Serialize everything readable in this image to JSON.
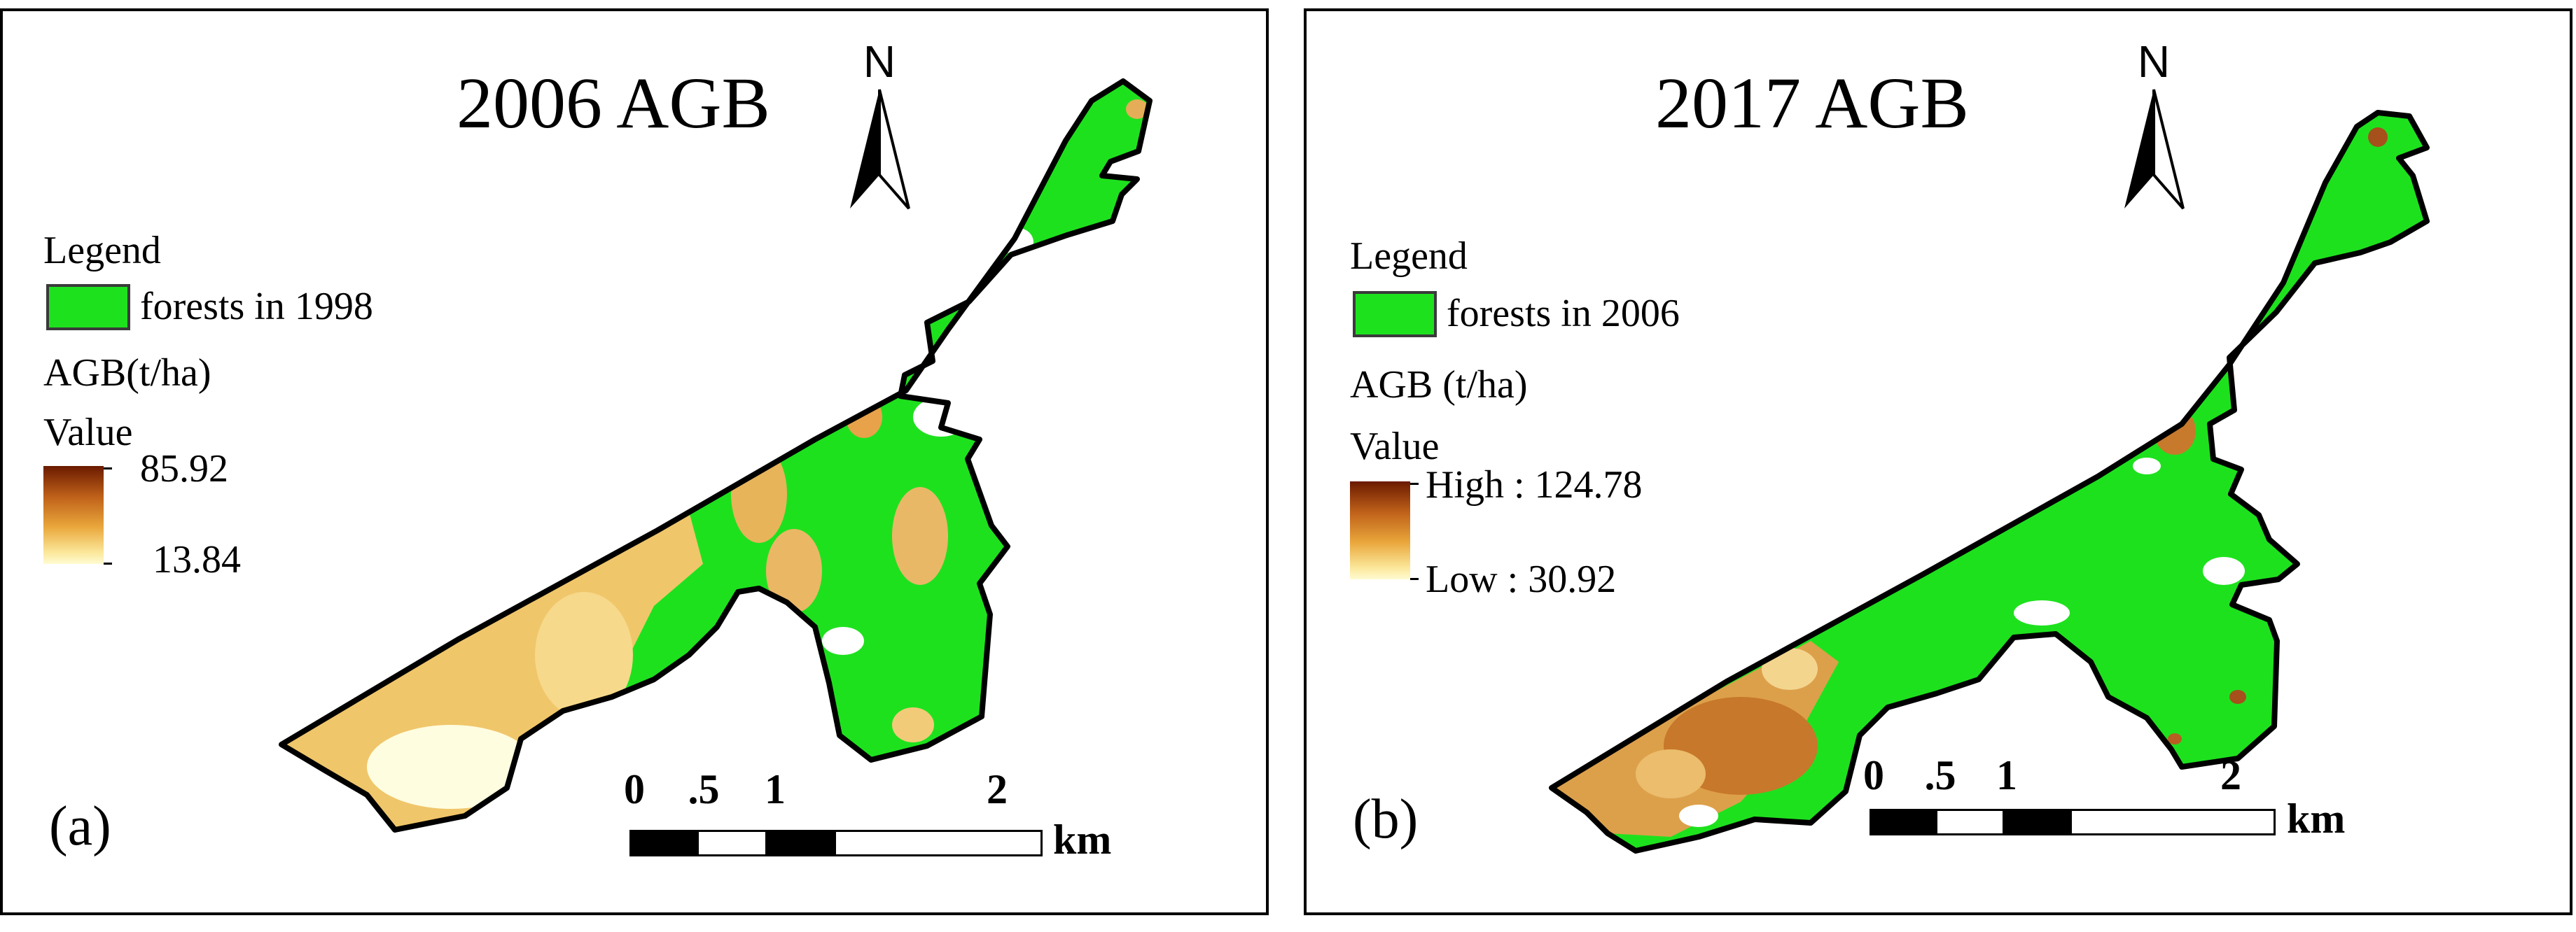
{
  "panel_a": {
    "title": "2006 AGB",
    "north_label": "N",
    "legend_heading": "Legend",
    "forest_label": "forests in 1998",
    "agb_label": "AGB(t/ha)",
    "value_label": "Value",
    "ramp_high": "85.92",
    "ramp_low": "13.84",
    "scale": {
      "n0": "0",
      "n1": ".5",
      "n2": "1",
      "n3": "2",
      "unit": "km"
    },
    "panel_letter": "(a)"
  },
  "panel_b": {
    "title": "2017 AGB",
    "north_label": "N",
    "legend_heading": "Legend",
    "forest_label": "forests in 2006",
    "agb_label": "AGB (t/ha)",
    "value_label": "Value",
    "ramp_high": "High : 124.78",
    "ramp_low": "Low : 30.92",
    "scale": {
      "n0": "0",
      "n1": ".5",
      "n2": "1",
      "n3": "2",
      "unit": "km"
    },
    "panel_letter": "(b)"
  },
  "colors": {
    "forest": "#1ee11e",
    "agb_high": "#6b1a00",
    "agb_mid": "#e9a63b",
    "agb_low": "#fffbd2",
    "boundary": "#000000"
  }
}
